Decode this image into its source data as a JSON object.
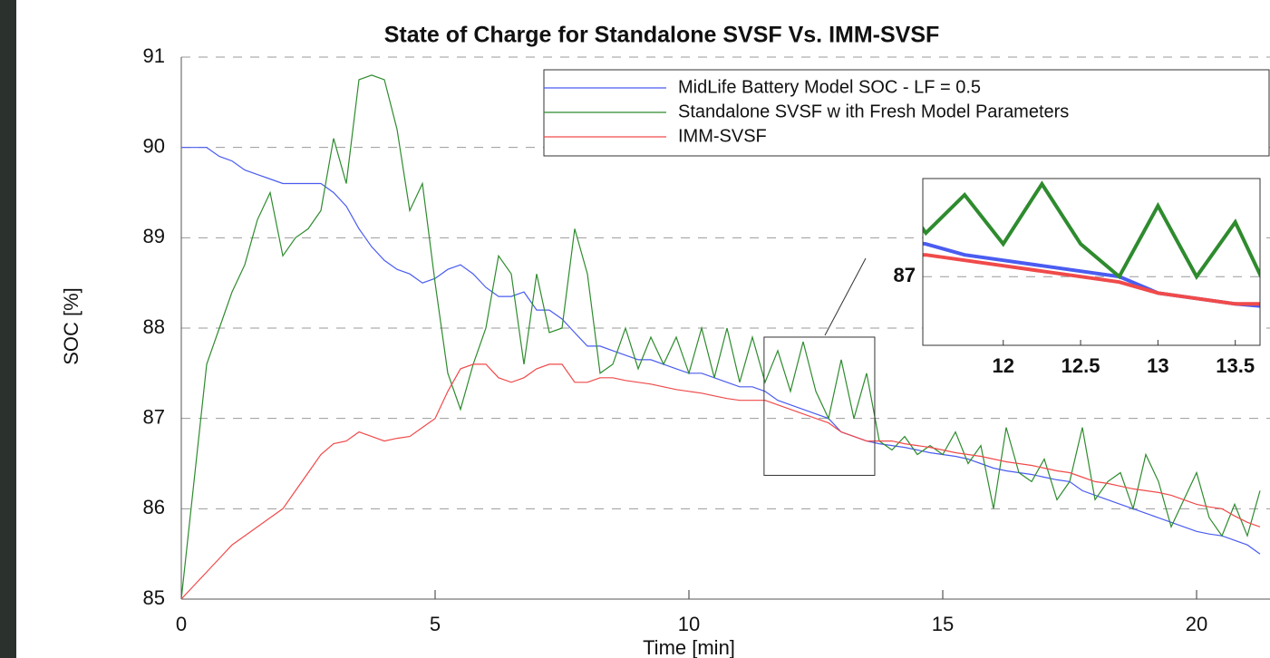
{
  "chart_data": {
    "type": "line",
    "title": "State of Charge for Standalone SVSF Vs. IMM-SVSF",
    "xlabel": "Time [min]",
    "ylabel": "SOC [%]",
    "xlim": [
      0,
      21.4
    ],
    "ylim": [
      85,
      91
    ],
    "xticks": [
      0,
      5,
      10,
      15,
      20
    ],
    "yticks": [
      85,
      86,
      87,
      88,
      89,
      90,
      91
    ],
    "grid": true,
    "legend": "top right",
    "x": [
      0,
      0.25,
      0.5,
      0.75,
      1,
      1.25,
      1.5,
      1.75,
      2,
      2.25,
      2.5,
      2.75,
      3,
      3.25,
      3.5,
      3.75,
      4,
      4.25,
      4.5,
      4.75,
      5,
      5.25,
      5.5,
      5.75,
      6,
      6.25,
      6.5,
      6.75,
      7,
      7.25,
      7.5,
      7.75,
      8,
      8.25,
      8.5,
      8.75,
      9,
      9.25,
      9.5,
      9.75,
      10,
      10.25,
      10.5,
      10.75,
      11,
      11.25,
      11.5,
      11.75,
      12,
      12.25,
      12.5,
      12.75,
      13,
      13.25,
      13.5,
      13.75,
      14,
      14.25,
      14.5,
      14.75,
      15,
      15.25,
      15.5,
      15.75,
      16,
      16.25,
      16.5,
      16.75,
      17,
      17.25,
      17.5,
      17.75,
      18,
      18.25,
      18.5,
      18.75,
      19,
      19.25,
      19.5,
      19.75,
      20,
      20.25,
      20.5,
      20.75,
      21,
      21.25
    ],
    "series": [
      {
        "name": "MidLife Battery Model SOC - LF = 0.5",
        "color": "#4a5cf0",
        "values": [
          90,
          90,
          90,
          89.9,
          89.85,
          89.75,
          89.7,
          89.65,
          89.6,
          89.6,
          89.6,
          89.6,
          89.5,
          89.35,
          89.1,
          88.9,
          88.75,
          88.65,
          88.6,
          88.5,
          88.55,
          88.65,
          88.7,
          88.6,
          88.45,
          88.35,
          88.35,
          88.4,
          88.2,
          88.2,
          88.1,
          87.95,
          87.8,
          87.8,
          87.75,
          87.7,
          87.65,
          87.65,
          87.6,
          87.55,
          87.5,
          87.5,
          87.45,
          87.4,
          87.35,
          87.35,
          87.3,
          87.2,
          87.15,
          87.1,
          87.05,
          87.0,
          86.85,
          86.8,
          86.75,
          86.72,
          86.7,
          86.68,
          86.65,
          86.62,
          86.6,
          86.58,
          86.55,
          86.5,
          86.45,
          86.42,
          86.4,
          86.38,
          86.35,
          86.32,
          86.3,
          86.2,
          86.15,
          86.1,
          86.05,
          86.0,
          85.95,
          85.9,
          85.85,
          85.8,
          85.75,
          85.72,
          85.7,
          85.65,
          85.6,
          85.5
        ]
      },
      {
        "name": "Standalone SVSF w ith Fresh Model Parameters",
        "color": "#2e8b2e",
        "values": [
          85.0,
          86.3,
          87.6,
          88.0,
          88.4,
          88.7,
          89.2,
          89.5,
          88.8,
          89.0,
          89.1,
          89.3,
          90.1,
          89.6,
          90.75,
          90.8,
          90.75,
          90.2,
          89.3,
          89.6,
          88.5,
          87.5,
          87.1,
          87.6,
          88.0,
          88.8,
          88.6,
          87.6,
          88.6,
          87.95,
          88.0,
          89.1,
          88.6,
          87.5,
          87.6,
          88.0,
          87.55,
          87.9,
          87.6,
          87.9,
          87.5,
          88.0,
          87.45,
          88.0,
          87.4,
          87.9,
          87.4,
          87.75,
          87.3,
          87.85,
          87.3,
          87.0,
          87.65,
          87.0,
          87.5,
          86.75,
          86.65,
          86.8,
          86.6,
          86.7,
          86.6,
          86.85,
          86.5,
          86.7,
          86.0,
          86.9,
          86.4,
          86.3,
          86.55,
          86.1,
          86.3,
          86.9,
          86.1,
          86.3,
          86.4,
          86.0,
          86.6,
          86.3,
          85.8,
          86.1,
          86.4,
          85.9,
          85.7,
          86.05,
          85.7,
          86.2
        ]
      },
      {
        "name": "IMM-SVSF",
        "color": "#f04a4a",
        "values": [
          85,
          85.15,
          85.3,
          85.45,
          85.6,
          85.7,
          85.8,
          85.9,
          86.0,
          86.2,
          86.4,
          86.6,
          86.72,
          86.75,
          86.85,
          86.8,
          86.75,
          86.78,
          86.8,
          86.9,
          87.0,
          87.3,
          87.55,
          87.6,
          87.6,
          87.45,
          87.4,
          87.45,
          87.55,
          87.6,
          87.6,
          87.4,
          87.4,
          87.45,
          87.45,
          87.42,
          87.4,
          87.38,
          87.35,
          87.32,
          87.3,
          87.28,
          87.25,
          87.22,
          87.2,
          87.2,
          87.2,
          87.15,
          87.1,
          87.05,
          87.0,
          86.95,
          86.85,
          86.8,
          86.75,
          86.75,
          86.75,
          86.72,
          86.7,
          86.68,
          86.65,
          86.62,
          86.6,
          86.58,
          86.55,
          86.52,
          86.5,
          86.48,
          86.45,
          86.42,
          86.4,
          86.35,
          86.3,
          86.28,
          86.25,
          86.22,
          86.2,
          86.18,
          86.15,
          86.1,
          86.05,
          86.02,
          86.0,
          85.92,
          85.85,
          85.8
        ]
      }
    ],
    "inset": {
      "xlim": [
        11.48,
        13.66
      ],
      "ylim": [
        86.37,
        87.9
      ],
      "xticks": [
        12,
        12.5,
        13,
        13.5
      ],
      "yticks": [
        87
      ]
    }
  }
}
